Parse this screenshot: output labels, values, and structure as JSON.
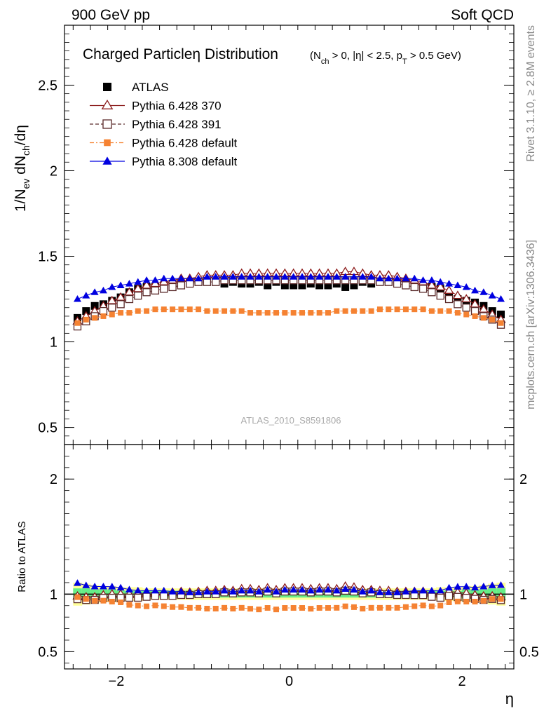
{
  "header": {
    "left": "900 GeV pp",
    "right": "Soft QCD"
  },
  "side_labels": {
    "rivet": "Rivet 3.1.10, ≥ 2.8M events",
    "mcplots": "mcplots.cern.ch [arXiv:1306.3436]"
  },
  "watermark": "ATLAS_2010_S8591806",
  "title": {
    "main": "Charged Particleη Distribution",
    "sub": "(N_ch > 0, |η| < 2.5, p_T > 0.5 GeV)"
  },
  "chart_data": [
    {
      "type": "scatter",
      "panel": "main",
      "xlabel": "η",
      "ylabel": "1/N_ev dN_ch/dη",
      "xlim": [
        -2.6,
        2.6
      ],
      "ylim": [
        0.4,
        2.85
      ],
      "yticks": [
        0.5,
        1,
        1.5,
        2,
        2.5
      ],
      "legend_position": "top-left",
      "x": [
        -2.45,
        -2.35,
        -2.25,
        -2.15,
        -2.05,
        -1.95,
        -1.85,
        -1.75,
        -1.65,
        -1.55,
        -1.45,
        -1.35,
        -1.25,
        -1.15,
        -1.05,
        -0.95,
        -0.85,
        -0.75,
        -0.65,
        -0.55,
        -0.45,
        -0.35,
        -0.25,
        -0.15,
        -0.05,
        0.05,
        0.15,
        0.25,
        0.35,
        0.45,
        0.55,
        0.65,
        0.75,
        0.85,
        0.95,
        1.05,
        1.15,
        1.25,
        1.35,
        1.45,
        1.55,
        1.65,
        1.75,
        1.85,
        1.95,
        2.05,
        2.15,
        2.25,
        2.35,
        2.45
      ],
      "series": [
        {
          "name": "ATLAS",
          "color": "#000000",
          "marker": "square-filled",
          "values": [
            1.14,
            1.18,
            1.21,
            1.22,
            1.24,
            1.26,
            1.29,
            1.31,
            1.32,
            1.32,
            1.33,
            1.34,
            1.34,
            1.35,
            1.35,
            1.35,
            1.35,
            1.34,
            1.35,
            1.34,
            1.34,
            1.35,
            1.33,
            1.35,
            1.33,
            1.33,
            1.33,
            1.34,
            1.33,
            1.33,
            1.34,
            1.32,
            1.33,
            1.35,
            1.34,
            1.35,
            1.35,
            1.35,
            1.34,
            1.33,
            1.32,
            1.32,
            1.31,
            1.27,
            1.25,
            1.24,
            1.23,
            1.21,
            1.18,
            1.16
          ]
        },
        {
          "name": "Pythia 6.428 370",
          "color": "#8b1a1a",
          "marker": "triangle-open",
          "values": [
            1.12,
            1.15,
            1.18,
            1.21,
            1.24,
            1.26,
            1.29,
            1.31,
            1.33,
            1.34,
            1.35,
            1.36,
            1.37,
            1.37,
            1.38,
            1.39,
            1.39,
            1.39,
            1.39,
            1.4,
            1.4,
            1.4,
            1.4,
            1.4,
            1.4,
            1.4,
            1.4,
            1.4,
            1.4,
            1.4,
            1.4,
            1.41,
            1.41,
            1.4,
            1.39,
            1.39,
            1.39,
            1.38,
            1.37,
            1.36,
            1.35,
            1.33,
            1.32,
            1.3,
            1.27,
            1.25,
            1.22,
            1.19,
            1.16,
            1.13
          ]
        },
        {
          "name": "Pythia 6.428 391",
          "color": "#5a2a2a",
          "marker": "square-open",
          "values": [
            1.09,
            1.12,
            1.15,
            1.18,
            1.2,
            1.22,
            1.25,
            1.27,
            1.29,
            1.3,
            1.31,
            1.32,
            1.33,
            1.34,
            1.35,
            1.35,
            1.35,
            1.36,
            1.36,
            1.36,
            1.36,
            1.36,
            1.36,
            1.36,
            1.36,
            1.36,
            1.36,
            1.36,
            1.36,
            1.36,
            1.36,
            1.36,
            1.36,
            1.36,
            1.36,
            1.35,
            1.35,
            1.34,
            1.33,
            1.32,
            1.31,
            1.29,
            1.27,
            1.25,
            1.22,
            1.2,
            1.18,
            1.15,
            1.13,
            1.1
          ]
        },
        {
          "name": "Pythia 6.428 default",
          "color": "#f58232",
          "marker": "square-small",
          "values": [
            1.11,
            1.13,
            1.14,
            1.15,
            1.16,
            1.17,
            1.17,
            1.18,
            1.18,
            1.19,
            1.19,
            1.19,
            1.19,
            1.19,
            1.19,
            1.18,
            1.18,
            1.18,
            1.18,
            1.18,
            1.17,
            1.17,
            1.17,
            1.17,
            1.17,
            1.17,
            1.17,
            1.17,
            1.17,
            1.17,
            1.18,
            1.18,
            1.18,
            1.18,
            1.18,
            1.19,
            1.19,
            1.19,
            1.19,
            1.19,
            1.19,
            1.18,
            1.18,
            1.18,
            1.17,
            1.16,
            1.15,
            1.14,
            1.13,
            1.11
          ]
        },
        {
          "name": "Pythia 8.308 default",
          "color": "#0000e0",
          "marker": "triangle-filled",
          "values": [
            1.25,
            1.27,
            1.29,
            1.3,
            1.32,
            1.33,
            1.34,
            1.35,
            1.36,
            1.36,
            1.37,
            1.37,
            1.37,
            1.37,
            1.37,
            1.38,
            1.38,
            1.38,
            1.38,
            1.38,
            1.38,
            1.38,
            1.38,
            1.38,
            1.38,
            1.38,
            1.38,
            1.38,
            1.38,
            1.38,
            1.38,
            1.38,
            1.38,
            1.38,
            1.38,
            1.37,
            1.37,
            1.37,
            1.37,
            1.37,
            1.36,
            1.36,
            1.35,
            1.34,
            1.33,
            1.32,
            1.3,
            1.29,
            1.27,
            1.25
          ]
        }
      ]
    },
    {
      "type": "scatter",
      "panel": "ratio",
      "xlabel": "η",
      "ylabel": "Ratio to ATLAS",
      "xlim": [
        -2.6,
        2.6
      ],
      "ylim": [
        0.35,
        2.3
      ],
      "yticks": [
        0.5,
        1,
        2
      ],
      "xticks": [
        -2,
        0,
        2
      ],
      "band_color_inner": "#66ee88",
      "band_color_outer": "#ffff99",
      "x": [
        -2.45,
        -2.35,
        -2.25,
        -2.15,
        -2.05,
        -1.95,
        -1.85,
        -1.75,
        -1.65,
        -1.55,
        -1.45,
        -1.35,
        -1.25,
        -1.15,
        -1.05,
        -0.95,
        -0.85,
        -0.75,
        -0.65,
        -0.55,
        -0.45,
        -0.35,
        -0.25,
        -0.15,
        -0.05,
        0.05,
        0.15,
        0.25,
        0.35,
        0.45,
        0.55,
        0.65,
        0.75,
        0.85,
        0.95,
        1.05,
        1.15,
        1.25,
        1.35,
        1.45,
        1.55,
        1.65,
        1.75,
        1.85,
        1.95,
        2.05,
        2.15,
        2.25,
        2.35,
        2.45
      ],
      "band_inner": [
        0.05,
        0.05,
        0.04,
        0.04,
        0.04,
        0.03,
        0.03,
        0.03,
        0.03,
        0.03,
        0.03,
        0.03,
        0.03,
        0.03,
        0.03,
        0.03,
        0.03,
        0.03,
        0.03,
        0.03,
        0.03,
        0.03,
        0.03,
        0.03,
        0.03,
        0.03,
        0.03,
        0.03,
        0.03,
        0.03,
        0.03,
        0.03,
        0.03,
        0.03,
        0.03,
        0.03,
        0.03,
        0.03,
        0.03,
        0.03,
        0.03,
        0.03,
        0.03,
        0.03,
        0.03,
        0.04,
        0.04,
        0.04,
        0.05,
        0.05
      ],
      "band_outer": [
        0.1,
        0.09,
        0.08,
        0.07,
        0.07,
        0.06,
        0.06,
        0.06,
        0.05,
        0.05,
        0.05,
        0.05,
        0.05,
        0.05,
        0.05,
        0.05,
        0.05,
        0.05,
        0.05,
        0.05,
        0.05,
        0.05,
        0.05,
        0.05,
        0.05,
        0.05,
        0.05,
        0.05,
        0.05,
        0.05,
        0.05,
        0.05,
        0.05,
        0.05,
        0.05,
        0.05,
        0.05,
        0.05,
        0.05,
        0.05,
        0.05,
        0.05,
        0.06,
        0.06,
        0.06,
        0.07,
        0.07,
        0.08,
        0.09,
        0.1
      ],
      "series": [
        {
          "name": "Pythia 6.428 370",
          "color": "#8b1a1a",
          "marker": "triangle-open",
          "values": [
            0.982,
            0.975,
            0.975,
            0.992,
            1.0,
            1.0,
            1.0,
            1.0,
            1.008,
            1.015,
            1.015,
            1.015,
            1.022,
            1.015,
            1.022,
            1.03,
            1.03,
            1.037,
            1.03,
            1.045,
            1.045,
            1.037,
            1.053,
            1.037,
            1.053,
            1.053,
            1.053,
            1.045,
            1.053,
            1.053,
            1.045,
            1.068,
            1.06,
            1.037,
            1.037,
            1.03,
            1.03,
            1.022,
            1.022,
            1.022,
            1.023,
            1.008,
            1.008,
            1.024,
            1.016,
            1.008,
            0.992,
            0.983,
            0.983,
            0.974
          ]
        },
        {
          "name": "Pythia 6.428 391",
          "color": "#5a2a2a",
          "marker": "square-open",
          "values": [
            0.956,
            0.949,
            0.95,
            0.967,
            0.968,
            0.968,
            0.969,
            0.969,
            0.977,
            0.985,
            0.985,
            0.985,
            0.993,
            0.993,
            1.0,
            1.0,
            1.0,
            1.015,
            1.007,
            1.015,
            1.015,
            1.007,
            1.023,
            1.007,
            1.023,
            1.023,
            1.023,
            1.015,
            1.023,
            1.023,
            1.015,
            1.03,
            1.023,
            1.007,
            1.015,
            1.0,
            1.0,
            0.993,
            0.993,
            0.992,
            0.992,
            0.977,
            0.969,
            0.984,
            0.976,
            0.968,
            0.959,
            0.95,
            0.958,
            0.948
          ]
        },
        {
          "name": "Pythia 6.428 default",
          "color": "#f58232",
          "marker": "square-small",
          "values": [
            0.974,
            0.958,
            0.942,
            0.943,
            0.935,
            0.929,
            0.907,
            0.901,
            0.894,
            0.902,
            0.895,
            0.888,
            0.888,
            0.881,
            0.881,
            0.874,
            0.874,
            0.881,
            0.874,
            0.881,
            0.873,
            0.867,
            0.88,
            0.867,
            0.88,
            0.88,
            0.88,
            0.873,
            0.88,
            0.88,
            0.881,
            0.894,
            0.887,
            0.874,
            0.881,
            0.881,
            0.881,
            0.881,
            0.888,
            0.895,
            0.902,
            0.894,
            0.901,
            0.929,
            0.936,
            0.935,
            0.935,
            0.942,
            0.958,
            0.957
          ]
        },
        {
          "name": "Pythia 8.308 default",
          "color": "#0000e0",
          "marker": "triangle-filled",
          "values": [
            1.096,
            1.076,
            1.066,
            1.066,
            1.065,
            1.056,
            1.039,
            1.031,
            1.03,
            1.03,
            1.03,
            1.022,
            1.022,
            1.015,
            1.015,
            1.022,
            1.022,
            1.03,
            1.022,
            1.03,
            1.03,
            1.022,
            1.038,
            1.022,
            1.038,
            1.038,
            1.038,
            1.03,
            1.038,
            1.038,
            1.03,
            1.045,
            1.038,
            1.022,
            1.03,
            1.015,
            1.015,
            1.015,
            1.022,
            1.03,
            1.03,
            1.03,
            1.031,
            1.055,
            1.064,
            1.065,
            1.057,
            1.066,
            1.076,
            1.078
          ]
        }
      ]
    }
  ]
}
